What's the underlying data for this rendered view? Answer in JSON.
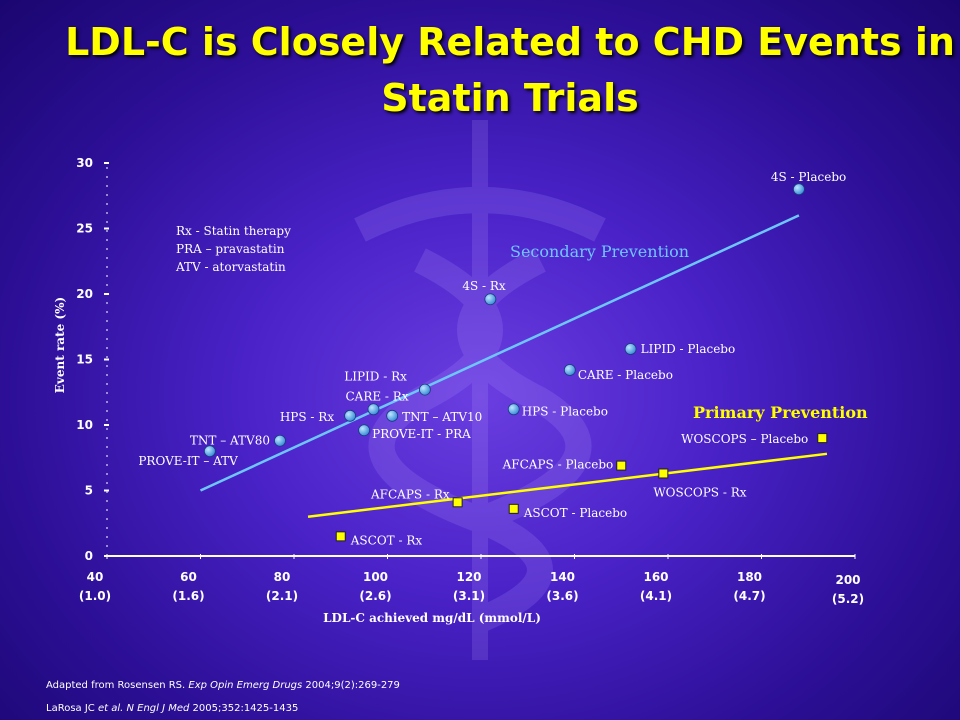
{
  "title": "LDL-C is Closely Related to CHD Events in Statin Trials",
  "colors": {
    "background": "#3a18b0",
    "title": "#ffff00",
    "secondary_line": "#6ec6ff",
    "secondary_point": "#5ab0f0",
    "primary_line": "#ffff00",
    "primary_point": "#ffff00",
    "secondary_label": "#6ec6ff",
    "primary_label": "#ffff00"
  },
  "chart_data": {
    "type": "scatter",
    "xlabel": "LDL-C achieved mg/dL (mmol/L)",
    "ylabel": "Event rate (%)",
    "xlim": [
      40,
      200
    ],
    "ylim": [
      0,
      30
    ],
    "x_ticks": [
      {
        "value": 40,
        "line1": "40",
        "line2": "(1.0)"
      },
      {
        "value": 60,
        "line1": "60",
        "line2": "(1.6)"
      },
      {
        "value": 80,
        "line1": "80",
        "line2": "(2.1)"
      },
      {
        "value": 100,
        "line1": "100",
        "line2": "(2.6)"
      },
      {
        "value": 120,
        "line1": "120",
        "line2": "(3.1)"
      },
      {
        "value": 140,
        "line1": "140",
        "line2": "(3.6)"
      },
      {
        "value": 160,
        "line1": "160",
        "line2": "(4.1)"
      },
      {
        "value": 180,
        "line1": "180",
        "line2": "(4.7)"
      },
      {
        "value": 200,
        "line1": "200",
        "line2": "(5.2)"
      }
    ],
    "y_ticks": [
      0,
      5,
      10,
      15,
      20,
      25,
      30
    ],
    "legend_lines": [
      "Rx - Statin therapy",
      "PRA – pravastatin",
      "ATV - atorvastatin"
    ],
    "series": [
      {
        "name": "Secondary Prevention",
        "marker": "circle",
        "trend": {
          "x": [
            60,
            188
          ],
          "y": [
            5,
            26
          ]
        },
        "points": [
          {
            "label": "4S - Placebo",
            "x": 188,
            "y": 28
          },
          {
            "label": "4S - Rx",
            "x": 122,
            "y": 19.6
          },
          {
            "label": "LIPID - Placebo",
            "x": 152,
            "y": 15.8
          },
          {
            "label": "CARE - Placebo",
            "x": 139,
            "y": 14.2
          },
          {
            "label": "LIPID - Rx",
            "x": 108,
            "y": 12.7
          },
          {
            "label": "CARE - Rx",
            "x": 97,
            "y": 11.2
          },
          {
            "label": "HPS - Rx",
            "x": 92,
            "y": 10.7
          },
          {
            "label": "TNT – ATV10",
            "x": 101,
            "y": 10.7
          },
          {
            "label": "HPS - Placebo",
            "x": 127,
            "y": 11.2
          },
          {
            "label": "PROVE-IT - PRA",
            "x": 95,
            "y": 9.6
          },
          {
            "label": "TNT – ATV80",
            "x": 77,
            "y": 8.8
          },
          {
            "label": "PROVE-IT – ATV",
            "x": 62,
            "y": 8
          }
        ]
      },
      {
        "name": "Primary Prevention",
        "marker": "square",
        "trend": {
          "x": [
            83,
            194
          ],
          "y": [
            3,
            7.8
          ]
        },
        "points": [
          {
            "label": "WOSCOPS – Placebo",
            "x": 193,
            "y": 9
          },
          {
            "label": "AFCAPS - Placebo",
            "x": 150,
            "y": 6.9
          },
          {
            "label": "WOSCOPS - Rx",
            "x": 159,
            "y": 6.3
          },
          {
            "label": "AFCAPS - Rx",
            "x": 115,
            "y": 4.1
          },
          {
            "label": "ASCOT - Placebo",
            "x": 127,
            "y": 3.6
          },
          {
            "label": "ASCOT - Rx",
            "x": 90,
            "y": 1.5
          }
        ]
      }
    ]
  },
  "references": [
    {
      "authors": "Adapted from Rosensen RS. ",
      "journal": "Exp Opin Emerg Drugs",
      "cite": " 2004;9(2):269-279"
    },
    {
      "authors": "LaRosa JC ",
      "journal": "et al. N Engl J Med",
      "cite": " 2005;352:1425-1435"
    }
  ]
}
